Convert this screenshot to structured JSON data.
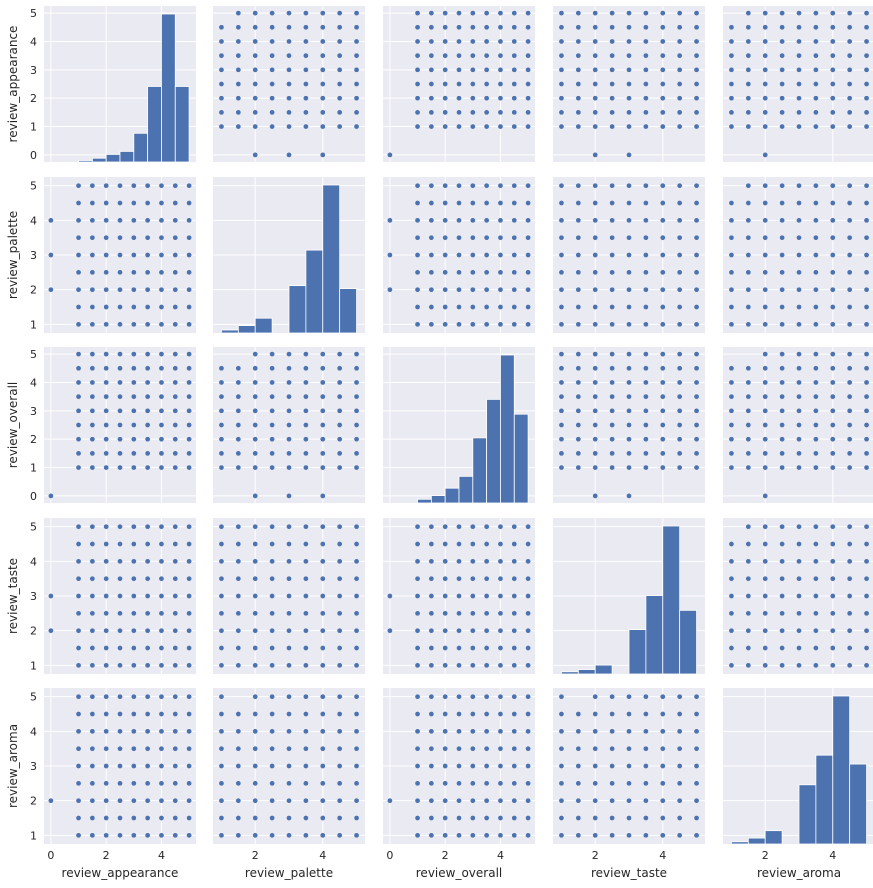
{
  "chart_data": {
    "type": "pairplot",
    "variables": [
      "review_appearance",
      "review_palette",
      "review_overall",
      "review_taste",
      "review_aroma"
    ],
    "axis_labels": {
      "x": [
        "review_appearance",
        "review_palette",
        "review_overall",
        "review_taste",
        "review_aroma"
      ],
      "y": [
        "review_appearance",
        "review_palette",
        "review_overall",
        "review_taste",
        "review_aroma"
      ]
    },
    "ranges": [
      [
        -0.25,
        5.25
      ],
      [
        0.75,
        5.25
      ],
      [
        -0.25,
        5.25
      ],
      [
        0.75,
        5.25
      ],
      [
        0.75,
        5.25
      ]
    ],
    "ticks": [
      [
        0,
        2,
        4
      ],
      [
        2,
        4
      ],
      [
        0,
        2,
        4
      ],
      [
        2,
        4
      ],
      [
        2,
        4
      ]
    ],
    "ytick_labels": [
      [
        0,
        1,
        2,
        3,
        4,
        5
      ],
      [
        1,
        2,
        3,
        4,
        5
      ],
      [
        0,
        1,
        2,
        3,
        4,
        5
      ],
      [
        1,
        2,
        3,
        4,
        5
      ],
      [
        1,
        2,
        3,
        4,
        5
      ]
    ],
    "value_grid": [
      1.0,
      1.5,
      2.0,
      2.5,
      3.0,
      3.5,
      4.0,
      4.5,
      5.0
    ],
    "histograms": [
      {
        "variable": "review_appearance",
        "bins": [
          [
            1.0,
            1.5,
            0.1
          ],
          [
            1.5,
            2.0,
            0.25
          ],
          [
            2.0,
            2.5,
            0.5
          ],
          [
            2.5,
            3.0,
            0.7
          ],
          [
            3.0,
            3.5,
            1.9
          ],
          [
            3.5,
            4.0,
            5.0
          ],
          [
            4.0,
            4.5,
            9.8
          ],
          [
            4.5,
            5.0,
            5.0
          ]
        ]
      },
      {
        "variable": "review_palette",
        "bins": [
          [
            1.0,
            1.5,
            0.2
          ],
          [
            1.5,
            2.0,
            0.5
          ],
          [
            2.0,
            2.5,
            1.0
          ],
          [
            2.5,
            3.0,
            0.0
          ],
          [
            3.0,
            3.5,
            3.2
          ],
          [
            3.5,
            4.0,
            5.6
          ],
          [
            4.0,
            4.5,
            10.0
          ],
          [
            4.5,
            5.0,
            3.0
          ]
        ]
      },
      {
        "variable": "review_overall",
        "bins": [
          [
            1.0,
            1.5,
            0.25
          ],
          [
            1.5,
            2.0,
            0.5
          ],
          [
            2.0,
            2.5,
            1.0
          ],
          [
            2.5,
            3.0,
            1.8
          ],
          [
            3.0,
            3.5,
            4.4
          ],
          [
            3.5,
            4.0,
            7.0
          ],
          [
            4.0,
            4.5,
            10.0
          ],
          [
            4.5,
            5.0,
            6.0
          ]
        ]
      },
      {
        "variable": "review_taste",
        "bins": [
          [
            1.0,
            1.5,
            0.15
          ],
          [
            1.5,
            2.0,
            0.3
          ],
          [
            2.0,
            2.5,
            0.6
          ],
          [
            2.5,
            3.0,
            0.0
          ],
          [
            3.0,
            3.5,
            3.0
          ],
          [
            3.5,
            4.0,
            5.3
          ],
          [
            4.0,
            4.5,
            10.0
          ],
          [
            4.5,
            5.0,
            4.3
          ]
        ]
      },
      {
        "variable": "review_aroma",
        "bins": [
          [
            1.0,
            1.5,
            0.15
          ],
          [
            1.5,
            2.0,
            0.4
          ],
          [
            2.0,
            2.5,
            0.9
          ],
          [
            2.5,
            3.0,
            0.0
          ],
          [
            3.0,
            3.5,
            4.0
          ],
          [
            3.5,
            4.0,
            6.0
          ],
          [
            4.0,
            4.5,
            10.0
          ],
          [
            4.5,
            5.0,
            5.4
          ]
        ]
      }
    ],
    "scatter_zero_points": [
      {
        "x_var": "review_palette",
        "y_var": "review_appearance",
        "points": [
          [
            2,
            0
          ],
          [
            3,
            0
          ],
          [
            4,
            0
          ]
        ]
      },
      {
        "x_var": "review_overall",
        "y_var": "review_appearance",
        "points": [
          [
            0,
            0
          ]
        ]
      },
      {
        "x_var": "review_taste",
        "y_var": "review_appearance",
        "points": [
          [
            2,
            0
          ],
          [
            3,
            0
          ]
        ]
      },
      {
        "x_var": "review_aroma",
        "y_var": "review_appearance",
        "points": [
          [
            2,
            0
          ]
        ]
      },
      {
        "x_var": "review_appearance",
        "y_var": "review_palette",
        "points": [
          [
            0,
            2
          ],
          [
            0,
            3
          ],
          [
            0,
            4
          ]
        ]
      },
      {
        "x_var": "review_overall",
        "y_var": "review_palette",
        "points": [
          [
            0,
            2
          ],
          [
            0,
            3
          ],
          [
            0,
            4
          ]
        ]
      },
      {
        "x_var": "review_appearance",
        "y_var": "review_overall",
        "points": [
          [
            0,
            0
          ]
        ]
      },
      {
        "x_var": "review_palette",
        "y_var": "review_overall",
        "points": [
          [
            2,
            0
          ],
          [
            3,
            0
          ],
          [
            4,
            0
          ]
        ]
      },
      {
        "x_var": "review_taste",
        "y_var": "review_overall",
        "points": [
          [
            2,
            0
          ],
          [
            3,
            0
          ]
        ]
      },
      {
        "x_var": "review_aroma",
        "y_var": "review_overall",
        "points": [
          [
            2,
            0
          ]
        ]
      },
      {
        "x_var": "review_appearance",
        "y_var": "review_taste",
        "points": [
          [
            0,
            2
          ],
          [
            0,
            3
          ]
        ]
      },
      {
        "x_var": "review_overall",
        "y_var": "review_taste",
        "points": [
          [
            0,
            2
          ],
          [
            0,
            3
          ]
        ]
      },
      {
        "x_var": "review_appearance",
        "y_var": "review_aroma",
        "points": [
          [
            0,
            2
          ]
        ]
      },
      {
        "x_var": "review_overall",
        "y_var": "review_aroma",
        "points": [
          [
            0,
            2
          ]
        ]
      }
    ],
    "missing_points": [
      {
        "x_var": "review_palette",
        "y_var": "review_appearance",
        "points": [
          [
            1.0,
            5.0
          ]
        ]
      },
      {
        "x_var": "review_aroma",
        "y_var": "review_appearance",
        "points": [
          [
            1.0,
            5.0
          ]
        ]
      },
      {
        "x_var": "review_palette",
        "y_var": "review_overall",
        "points": [
          [
            1.0,
            5.0
          ],
          [
            1.5,
            5.0
          ]
        ]
      },
      {
        "x_var": "review_aroma",
        "y_var": "review_overall",
        "points": [
          [
            1.0,
            5.0
          ],
          [
            1.5,
            5.0
          ]
        ]
      },
      {
        "x_var": "review_aroma",
        "y_var": "review_palette",
        "points": [
          [
            1.0,
            5.0
          ]
        ]
      },
      {
        "x_var": "review_aroma",
        "y_var": "review_taste",
        "points": [
          [
            1.0,
            5.0
          ]
        ]
      },
      {
        "x_var": "review_palette",
        "y_var": "review_aroma",
        "points": [
          [
            1.5,
            5.0
          ]
        ]
      },
      {
        "x_var": "review_taste",
        "y_var": "review_aroma",
        "points": [
          [
            1.5,
            5.0
          ]
        ]
      }
    ],
    "grid": true,
    "colors": {
      "panel_bg": "#eaeaf2",
      "grid": "#ffffff",
      "marker": "#4c72b0",
      "text": "#262626"
    }
  }
}
